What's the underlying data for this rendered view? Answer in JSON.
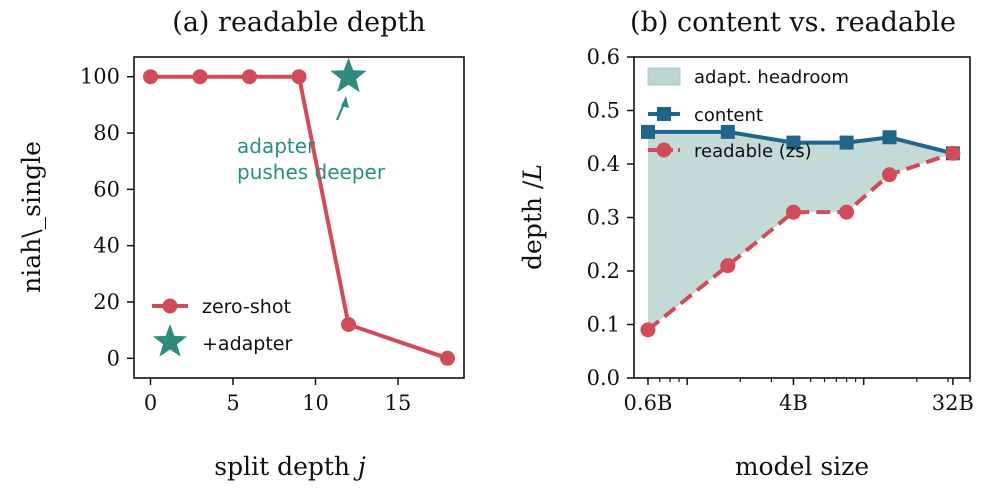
{
  "colors": {
    "red": "#d24b5b",
    "teal": "#2e8b7e",
    "blue": "#20668a",
    "fill": "#bdd6d3"
  },
  "chart_data": [
    {
      "type": "line",
      "title": "(a) readable depth",
      "xlabel": "split depth",
      "xlabel_var": "j",
      "ylabel": "niah\\_single",
      "xlim": [
        -1,
        19
      ],
      "ylim": [
        -7,
        107
      ],
      "xticks": [
        0,
        5,
        10,
        15
      ],
      "xtick_labels": [
        "0",
        "5",
        "10",
        "15"
      ],
      "yticks": [
        0,
        20,
        40,
        60,
        80,
        100
      ],
      "ytick_labels": [
        "0",
        "20",
        "40",
        "60",
        "80",
        "100"
      ],
      "series": [
        {
          "name": "zero-shot",
          "x": [
            0,
            3,
            6,
            9,
            12,
            18
          ],
          "y": [
            100,
            100,
            100,
            100,
            12,
            0
          ]
        },
        {
          "name": "+adapter",
          "x": [
            12
          ],
          "y": [
            100
          ]
        }
      ],
      "annotation": {
        "lines": [
          "adapter",
          "pushes deeper"
        ]
      },
      "legend_position": "lower-left"
    },
    {
      "type": "line",
      "title": "(b) content vs. readable",
      "xlabel": "model size",
      "ylabel": "depth /",
      "ylabel_var": "L",
      "x_scale": "log",
      "xlim": [
        0.5,
        40
      ],
      "ylim": [
        0,
        0.6
      ],
      "xticks": [
        0.6,
        4,
        32
      ],
      "xtick_labels": [
        "0.6B",
        "4B",
        "32B"
      ],
      "yticks": [
        0,
        0.1,
        0.2,
        0.3,
        0.4,
        0.5,
        0.6
      ],
      "ytick_labels": [
        "0.0",
        "0.1",
        "0.2",
        "0.3",
        "0.4",
        "0.5",
        "0.6"
      ],
      "series": [
        {
          "name": "content",
          "x": [
            0.6,
            1.7,
            4,
            8,
            14,
            32
          ],
          "y": [
            0.46,
            0.46,
            0.44,
            0.44,
            0.45,
            0.42
          ]
        },
        {
          "name": "readable (zs)",
          "x": [
            0.6,
            1.7,
            4,
            8,
            14,
            32
          ],
          "y": [
            0.09,
            0.21,
            0.31,
            0.31,
            0.38,
            0.42
          ]
        }
      ],
      "fill_between": {
        "name": "adapt. headroom"
      },
      "legend_position": "top-left"
    }
  ]
}
